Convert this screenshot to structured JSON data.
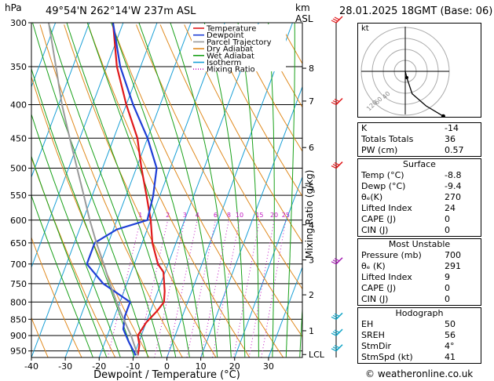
{
  "header": {
    "units_hpa": "hPa",
    "location": "49°54'N  262°14'W  237m  ASL",
    "units_km": "km",
    "units_asl": "ASL",
    "datetime": "28.01.2025  18GMT  (Base: 06)"
  },
  "legend": [
    {
      "label": "Temperature",
      "color": "#e0191b",
      "style": "solid"
    },
    {
      "label": "Dewpoint",
      "color": "#1f3fd6",
      "style": "solid"
    },
    {
      "label": "Parcel Trajectory",
      "color": "#9a9a9a",
      "style": "solid"
    },
    {
      "label": "Dry Adiabat",
      "color": "#e08a1e",
      "style": "solid"
    },
    {
      "label": "Wet Adiabat",
      "color": "#1aa11a",
      "style": "solid"
    },
    {
      "label": "Isotherm",
      "color": "#1aa0d6",
      "style": "solid"
    },
    {
      "label": "Mixing Ratio",
      "color": "#c218c2",
      "style": "dotted"
    }
  ],
  "chart_data": {
    "type": "line",
    "xlabel": "Dewpoint / Temperature (°C)",
    "ylabel_left": "hPa",
    "ylabel_right": "Mixing Ratio (g/kg)",
    "xlim": [
      -40,
      40
    ],
    "x_ticks": [
      -40,
      -30,
      -20,
      -10,
      0,
      10,
      20,
      30
    ],
    "pressure_ticks": [
      300,
      350,
      400,
      450,
      500,
      550,
      600,
      650,
      700,
      750,
      800,
      850,
      900,
      950
    ],
    "height_km_ticks": [
      {
        "label": "8",
        "p": 352
      },
      {
        "label": "7",
        "p": 395
      },
      {
        "label": "6",
        "p": 465
      },
      {
        "label": "5",
        "p": 535
      },
      {
        "label": "4",
        "p": 610
      },
      {
        "label": "3",
        "p": 690
      },
      {
        "label": "2",
        "p": 780
      },
      {
        "label": "1",
        "p": 885
      },
      {
        "label": "LCL",
        "p": 962
      }
    ],
    "mixing_ratio_labels": [
      "1",
      "2",
      "3",
      "4",
      "6",
      "8",
      "10",
      "15",
      "20",
      "25"
    ],
    "series": [
      {
        "name": "Temperature",
        "color": "#e0191b",
        "p": [
          965,
          930,
          900,
          860,
          825,
          800,
          770,
          720,
          700,
          650,
          600,
          550,
          500,
          450,
          400,
          350,
          300
        ],
        "temp": [
          -8.8,
          -9.5,
          -11,
          -10,
          -8,
          -7,
          -8,
          -10.5,
          -13,
          -17,
          -20,
          -24,
          -28.5,
          -33,
          -40,
          -47,
          -53
        ]
      },
      {
        "name": "Dewpoint",
        "color": "#1f3fd6",
        "p": [
          965,
          920,
          880,
          840,
          800,
          750,
          700,
          650,
          620,
          600,
          550,
          500,
          450,
          400,
          350,
          300
        ],
        "temp": [
          -9.4,
          -13,
          -16,
          -17,
          -17,
          -27,
          -34,
          -34,
          -29,
          -21,
          -22,
          -24,
          -30,
          -38,
          -46,
          -53
        ]
      },
      {
        "name": "Parcel Trajectory",
        "color": "#9a9a9a",
        "p": [
          965,
          900,
          850,
          800,
          750,
          700,
          650,
          600,
          550,
          500,
          450,
          400,
          350,
          300
        ],
        "temp": [
          -8.8,
          -13,
          -17,
          -21,
          -25,
          -29,
          -33.5,
          -38,
          -42.5,
          -47.5,
          -53,
          -59,
          -65,
          -72
        ]
      }
    ]
  },
  "wind_barbs_p": [
    300,
    400,
    500,
    700,
    850,
    900,
    950
  ],
  "hodograph": {
    "label": "kt",
    "ring_labels": [
      "40",
      "60",
      "120"
    ],
    "points_kt": [
      [
        0,
        0
      ],
      [
        1,
        -4
      ],
      [
        4,
        -13
      ],
      [
        12,
        -20
      ],
      [
        22,
        -26
      ]
    ]
  },
  "indices": {
    "rows": [
      {
        "k": "K",
        "v": "-14"
      },
      {
        "k": "Totals Totals",
        "v": "36"
      },
      {
        "k": "PW (cm)",
        "v": "0.57"
      }
    ]
  },
  "surface": {
    "title": "Surface",
    "rows": [
      {
        "k": "Temp (°C)",
        "v": "-8.8"
      },
      {
        "k": "Dewp (°C)",
        "v": "-9.4"
      },
      {
        "k": "θₑ(K)",
        "v": "270"
      },
      {
        "k": "Lifted Index",
        "v": "24"
      },
      {
        "k": "CAPE (J)",
        "v": "0"
      },
      {
        "k": "CIN (J)",
        "v": "0"
      }
    ]
  },
  "most_unstable": {
    "title": "Most Unstable",
    "rows": [
      {
        "k": "Pressure (mb)",
        "v": "700"
      },
      {
        "k": "θₑ (K)",
        "v": "291"
      },
      {
        "k": "Lifted Index",
        "v": "9"
      },
      {
        "k": "CAPE (J)",
        "v": "0"
      },
      {
        "k": "CIN (J)",
        "v": "0"
      }
    ]
  },
  "hodograph_table": {
    "title": "Hodograph",
    "rows": [
      {
        "k": "EH",
        "v": "50"
      },
      {
        "k": "SREH",
        "v": "56"
      },
      {
        "k": "StmDir",
        "v": "4°"
      },
      {
        "k": "StmSpd (kt)",
        "v": "41"
      }
    ]
  },
  "footer": {
    "copyright": "© weatheronline.co.uk"
  }
}
